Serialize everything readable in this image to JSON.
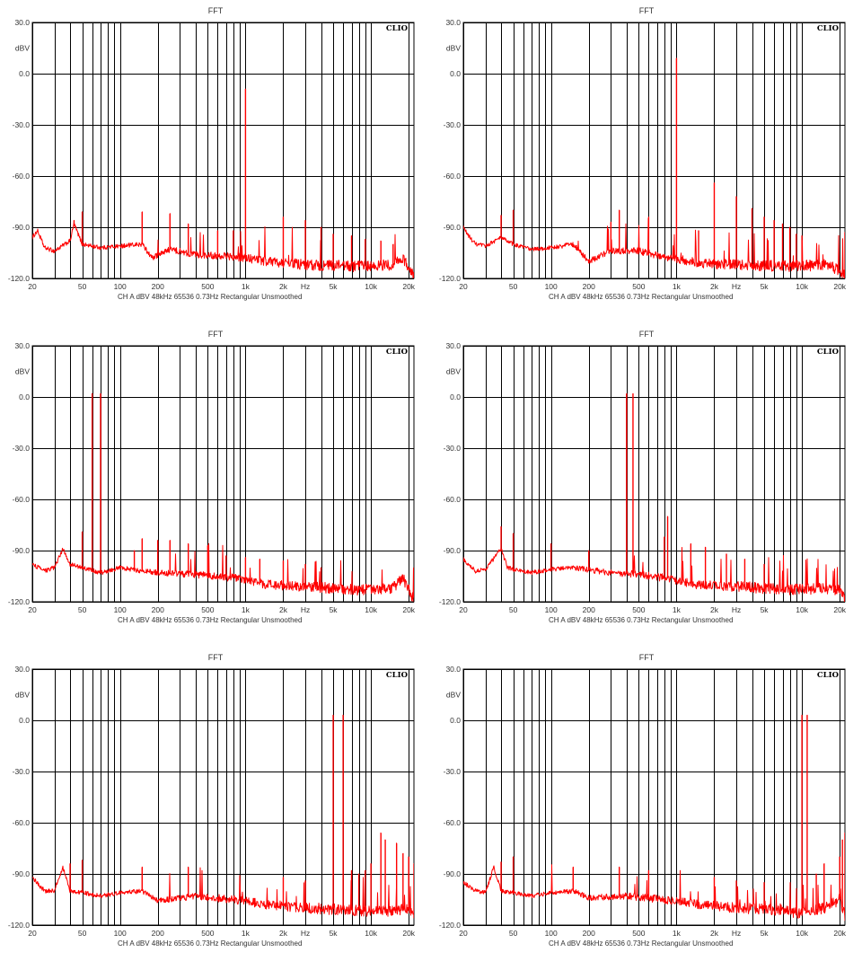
{
  "chart_data": [
    {
      "type": "line",
      "title": "FFT",
      "brand": "CLIO",
      "ylabel": "dBV",
      "xlabel": "Hz",
      "footer": "CH A   dBV   48kHz   65536   0.73Hz   Rectangular   Unsmoothed",
      "x_scale": "log",
      "xlim": [
        20,
        22000
      ],
      "ylim": [
        -120,
        30
      ],
      "grid": true,
      "line_color": "#ff0000",
      "y_ticks": [
        "30.0",
        "0.0",
        "-30.0",
        "-60.0",
        "-90.0",
        "-120.0"
      ],
      "x_ticks": [
        "20",
        "50",
        "100",
        "200",
        "500",
        "1k",
        "2k",
        "Hz",
        "5k",
        "10k",
        "20k"
      ],
      "noise_floor": [
        [
          20,
          -96
        ],
        [
          22,
          -92
        ],
        [
          25,
          -102
        ],
        [
          30,
          -104
        ],
        [
          40,
          -98
        ],
        [
          43,
          -88
        ],
        [
          50,
          -100
        ],
        [
          70,
          -102
        ],
        [
          100,
          -101
        ],
        [
          150,
          -100
        ],
        [
          180,
          -108
        ],
        [
          250,
          -103
        ],
        [
          400,
          -106
        ],
        [
          800,
          -107
        ],
        [
          1500,
          -110
        ],
        [
          3000,
          -112
        ],
        [
          8000,
          -113
        ],
        [
          15000,
          -112
        ],
        [
          18000,
          -108
        ],
        [
          20000,
          -114
        ],
        [
          22000,
          -118
        ]
      ],
      "peaks": [
        [
          1000,
          -9
        ],
        [
          43,
          -86
        ],
        [
          50,
          -81
        ],
        [
          150,
          -81
        ],
        [
          250,
          -82
        ],
        [
          2000,
          -84
        ],
        [
          3000,
          -86
        ],
        [
          350,
          -88
        ],
        [
          4000,
          -90
        ],
        [
          600,
          -92
        ],
        [
          800,
          -92
        ],
        [
          5000,
          -94
        ],
        [
          7000,
          -95
        ],
        [
          9000,
          -97
        ],
        [
          12000,
          -98
        ],
        [
          15000,
          -100
        ]
      ]
    },
    {
      "type": "line",
      "title": "FFT",
      "brand": "CLIO",
      "ylabel": "dBV",
      "xlabel": "Hz",
      "footer": "CH A   dBV   48kHz   65536   0.73Hz   Rectangular   Unsmoothed",
      "x_scale": "log",
      "xlim": [
        20,
        22000
      ],
      "ylim": [
        -120,
        30
      ],
      "grid": true,
      "line_color": "#ff0000",
      "y_ticks": [
        "30.0",
        "0.0",
        "-30.0",
        "-60.0",
        "-90.0",
        "-120.0"
      ],
      "x_ticks": [
        "20",
        "50",
        "100",
        "200",
        "500",
        "1k",
        "2k",
        "Hz",
        "5k",
        "10k",
        "20k"
      ],
      "noise_floor": [
        [
          20,
          -90
        ],
        [
          22,
          -95
        ],
        [
          25,
          -100
        ],
        [
          30,
          -101
        ],
        [
          40,
          -96
        ],
        [
          50,
          -100
        ],
        [
          70,
          -103
        ],
        [
          100,
          -102
        ],
        [
          150,
          -100
        ],
        [
          200,
          -110
        ],
        [
          300,
          -104
        ],
        [
          500,
          -104
        ],
        [
          800,
          -107
        ],
        [
          1500,
          -111
        ],
        [
          3000,
          -112
        ],
        [
          8000,
          -113
        ],
        [
          15000,
          -112
        ],
        [
          20000,
          -115
        ],
        [
          22000,
          -119
        ]
      ],
      "peaks": [
        [
          1000,
          9
        ],
        [
          2000,
          -64
        ],
        [
          3000,
          -72
        ],
        [
          4000,
          -79
        ],
        [
          5000,
          -84
        ],
        [
          6000,
          -86
        ],
        [
          7000,
          -88
        ],
        [
          8000,
          -90
        ],
        [
          9000,
          -94
        ],
        [
          10000,
          -95
        ],
        [
          50,
          -80
        ],
        [
          40,
          -83
        ],
        [
          350,
          -80
        ],
        [
          300,
          -87
        ],
        [
          600,
          -84
        ],
        [
          1500,
          -92
        ],
        [
          22000,
          -93
        ]
      ]
    },
    {
      "type": "line",
      "title": "FFT",
      "brand": "CLIO",
      "ylabel": "dBV",
      "xlabel": "Hz",
      "footer": "CH A   dBV   48kHz   65536   0.73Hz   Rectangular   Unsmoothed",
      "x_scale": "log",
      "xlim": [
        20,
        22000
      ],
      "ylim": [
        -120,
        30
      ],
      "grid": true,
      "line_color": "#ff0000",
      "y_ticks": [
        "30.0",
        "0.0",
        "-30.0",
        "-60.0",
        "-90.0",
        "-120.0"
      ],
      "x_ticks": [
        "20",
        "50",
        "100",
        "200",
        "500",
        "1k",
        "2k",
        "Hz",
        "5k",
        "10k",
        "20k"
      ],
      "noise_floor": [
        [
          20,
          -98
        ],
        [
          25,
          -102
        ],
        [
          30,
          -100
        ],
        [
          35,
          -89
        ],
        [
          40,
          -98
        ],
        [
          50,
          -100
        ],
        [
          70,
          -103
        ],
        [
          100,
          -100
        ],
        [
          150,
          -102
        ],
        [
          200,
          -103
        ],
        [
          400,
          -104
        ],
        [
          800,
          -106
        ],
        [
          1500,
          -110
        ],
        [
          3000,
          -111
        ],
        [
          8000,
          -113
        ],
        [
          15000,
          -112
        ],
        [
          18000,
          -106
        ],
        [
          20000,
          -113
        ],
        [
          22000,
          -119
        ]
      ],
      "peaks": [
        [
          60,
          2
        ],
        [
          70,
          2
        ],
        [
          50,
          -79
        ],
        [
          150,
          -83
        ],
        [
          200,
          -84
        ],
        [
          250,
          -84
        ],
        [
          350,
          -86
        ],
        [
          500,
          -87
        ],
        [
          130,
          -90
        ],
        [
          700,
          -93
        ],
        [
          1000,
          -94
        ],
        [
          1300,
          -95
        ],
        [
          2000,
          -96
        ],
        [
          3000,
          -98
        ],
        [
          4000,
          -100
        ]
      ]
    },
    {
      "type": "line",
      "title": "FFT",
      "brand": "CLIO",
      "ylabel": "dBV",
      "xlabel": "Hz",
      "footer": "CH A   dBV   48kHz   65536   0.73Hz   Rectangular   Unsmoothed",
      "x_scale": "log",
      "xlim": [
        20,
        22000
      ],
      "ylim": [
        -120,
        30
      ],
      "grid": true,
      "line_color": "#ff0000",
      "y_ticks": [
        "30.0",
        "0.0",
        "-30.0",
        "-60.0",
        "-90.0",
        "-120.0"
      ],
      "x_ticks": [
        "20",
        "50",
        "100",
        "200",
        "500",
        "1k",
        "2k",
        "Hz",
        "5k",
        "10k",
        "20k"
      ],
      "noise_floor": [
        [
          20,
          -95
        ],
        [
          25,
          -102
        ],
        [
          30,
          -101
        ],
        [
          40,
          -89
        ],
        [
          45,
          -100
        ],
        [
          50,
          -101
        ],
        [
          70,
          -103
        ],
        [
          100,
          -101
        ],
        [
          150,
          -100
        ],
        [
          300,
          -103
        ],
        [
          500,
          -104
        ],
        [
          800,
          -106
        ],
        [
          1500,
          -110
        ],
        [
          3000,
          -111
        ],
        [
          8000,
          -113
        ],
        [
          15000,
          -112
        ],
        [
          20000,
          -113
        ],
        [
          22000,
          -119
        ]
      ],
      "peaks": [
        [
          400,
          2
        ],
        [
          450,
          2
        ],
        [
          40,
          -76
        ],
        [
          50,
          -80
        ],
        [
          850,
          -70
        ],
        [
          800,
          -82
        ],
        [
          1300,
          -86
        ],
        [
          100,
          -86
        ],
        [
          1700,
          -88
        ],
        [
          200,
          -90
        ],
        [
          2500,
          -92
        ],
        [
          3500,
          -95
        ],
        [
          5000,
          -98
        ]
      ]
    },
    {
      "type": "line",
      "title": "FFT",
      "brand": "CLIO",
      "ylabel": "dBV",
      "xlabel": "Hz",
      "footer": "CH A   dBV   48kHz   65536   0.73Hz   Rectangular   Unsmoothed",
      "x_scale": "log",
      "xlim": [
        20,
        22000
      ],
      "ylim": [
        -120,
        30
      ],
      "grid": true,
      "line_color": "#ff0000",
      "y_ticks": [
        "30.0",
        "0.0",
        "-30.0",
        "-60.0",
        "-90.0",
        "-120.0"
      ],
      "x_ticks": [
        "20",
        "50",
        "100",
        "200",
        "500",
        "1k",
        "2k",
        "Hz",
        "5k",
        "10k",
        "20k"
      ],
      "noise_floor": [
        [
          20,
          -92
        ],
        [
          25,
          -100
        ],
        [
          30,
          -100
        ],
        [
          35,
          -86
        ],
        [
          40,
          -100
        ],
        [
          50,
          -101
        ],
        [
          70,
          -103
        ],
        [
          100,
          -101
        ],
        [
          150,
          -100
        ],
        [
          200,
          -106
        ],
        [
          400,
          -103
        ],
        [
          800,
          -105
        ],
        [
          1500,
          -108
        ],
        [
          3000,
          -110
        ],
        [
          6000,
          -111
        ],
        [
          10000,
          -112
        ],
        [
          15000,
          -112
        ],
        [
          20000,
          -110
        ],
        [
          22000,
          -116
        ]
      ],
      "peaks": [
        [
          5000,
          3
        ],
        [
          6000,
          3
        ],
        [
          12000,
          -66
        ],
        [
          13000,
          -70
        ],
        [
          16000,
          -72
        ],
        [
          18000,
          -78
        ],
        [
          20000,
          -80
        ],
        [
          22000,
          -84
        ],
        [
          10000,
          -84
        ],
        [
          9000,
          -88
        ],
        [
          7000,
          -88
        ],
        [
          8000,
          -90
        ],
        [
          50,
          -82
        ],
        [
          40,
          -84
        ],
        [
          150,
          -86
        ],
        [
          350,
          -86
        ],
        [
          2000,
          -92
        ],
        [
          3000,
          -94
        ]
      ]
    },
    {
      "type": "line",
      "title": "FFT",
      "brand": "CLIO",
      "ylabel": "dBV",
      "xlabel": "Hz",
      "footer": "CH A   dBV   48kHz   65536   0.73Hz   Rectangular   Unsmoothed",
      "x_scale": "log",
      "xlim": [
        20,
        22000
      ],
      "ylim": [
        -120,
        30
      ],
      "grid": true,
      "line_color": "#ff0000",
      "y_ticks": [
        "30.0",
        "0.0",
        "-30.0",
        "-60.0",
        "-90.0",
        "-120.0"
      ],
      "x_ticks": [
        "20",
        "50",
        "100",
        "200",
        "500",
        "1k",
        "2k",
        "Hz",
        "5k",
        "10k",
        "20k"
      ],
      "noise_floor": [
        [
          20,
          -95
        ],
        [
          25,
          -100
        ],
        [
          30,
          -101
        ],
        [
          35,
          -86
        ],
        [
          40,
          -100
        ],
        [
          50,
          -101
        ],
        [
          70,
          -103
        ],
        [
          100,
          -101
        ],
        [
          150,
          -100
        ],
        [
          200,
          -104
        ],
        [
          400,
          -103
        ],
        [
          800,
          -105
        ],
        [
          1500,
          -108
        ],
        [
          3000,
          -110
        ],
        [
          6000,
          -111
        ],
        [
          10000,
          -113
        ],
        [
          15000,
          -110
        ],
        [
          20000,
          -105
        ],
        [
          22000,
          -114
        ]
      ],
      "peaks": [
        [
          10000,
          3
        ],
        [
          11000,
          3
        ],
        [
          22000,
          -66
        ],
        [
          21000,
          -70
        ],
        [
          20000,
          -80
        ],
        [
          15000,
          -84
        ],
        [
          13000,
          -90
        ],
        [
          40,
          -83
        ],
        [
          50,
          -80
        ],
        [
          150,
          -86
        ],
        [
          350,
          -86
        ],
        [
          600,
          -88
        ],
        [
          2000,
          -92
        ],
        [
          3000,
          -94
        ],
        [
          5000,
          -95
        ]
      ]
    }
  ]
}
